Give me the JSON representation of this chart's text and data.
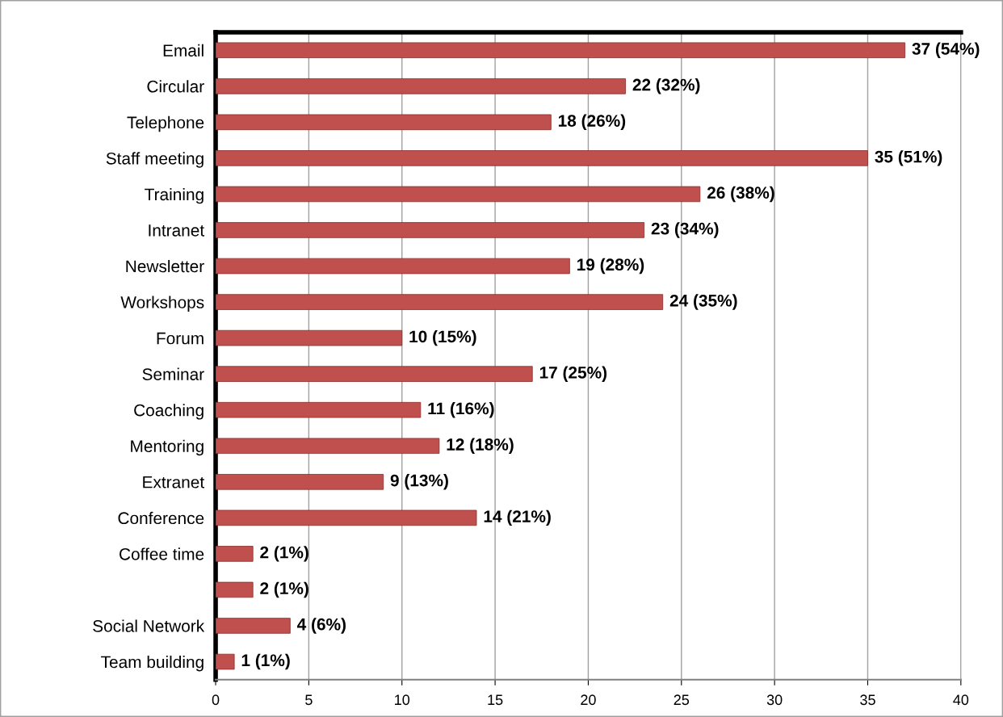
{
  "chart_data": {
    "type": "bar",
    "orientation": "horizontal",
    "categories": [
      "Email",
      "Circular",
      "Telephone",
      "Staff meeting",
      "Training",
      "Intranet",
      "Newsletter",
      "Workshops",
      "Forum",
      "Seminar",
      "Coaching",
      "Mentoring",
      "Extranet",
      "Conference",
      "Coffee time",
      null,
      "Social Network",
      "Team building"
    ],
    "values": [
      37,
      22,
      18,
      35,
      26,
      23,
      19,
      24,
      10,
      17,
      11,
      12,
      9,
      14,
      2,
      2,
      4,
      1
    ],
    "value_labels": [
      "37 (54%)",
      "22 (32%)",
      "18 (26%)",
      "35 (51%)",
      "26 (38%)",
      "23 (34%)",
      "19 (28%)",
      "24 (35%)",
      "10 (15%)",
      "17 (25%)",
      "11 (16%)",
      "12 (18%)",
      "9 (13%)",
      "14 (21%)",
      "2 (1%)",
      "2 (1%)",
      "4 (6%)",
      "1 (1%)"
    ],
    "color": "#c0504d",
    "xlim": [
      0,
      40
    ],
    "xticks": [
      0,
      5,
      10,
      15,
      20,
      25,
      30,
      35,
      40
    ],
    "grid": "x"
  }
}
